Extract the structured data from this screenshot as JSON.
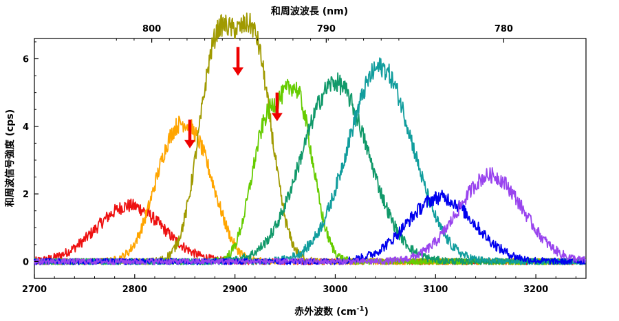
{
  "chart_data": {
    "type": "line",
    "top_axis_title": "和周波波長 (nm)",
    "top_ticks": [
      {
        "label": "800",
        "x": 2817
      },
      {
        "label": "790",
        "x": 2991
      },
      {
        "label": "780",
        "x": 3168
      }
    ],
    "xlabel": "赤外波数 (cm",
    "xlabel_sup": "-1",
    "xlabel_close": ")",
    "ylabel": "和周波信号強度 (cps)",
    "xlim": [
      2700,
      3250
    ],
    "ylim": [
      -0.5,
      6.6
    ],
    "xticks": [
      2700,
      2800,
      2900,
      3000,
      3100,
      3200
    ],
    "yticks": [
      0,
      2,
      4,
      6
    ],
    "grid": false,
    "series": [
      {
        "color": "#ee1111",
        "center": 2795,
        "width": 33,
        "peaks": [
          [
            2795,
            1.65,
            33
          ]
        ]
      },
      {
        "color": "#ffa500",
        "center": 2848,
        "width": 30,
        "peaks": [
          [
            2838,
            3.3,
            20
          ],
          [
            2868,
            2.2,
            18
          ]
        ]
      },
      {
        "color": "#a09a00",
        "center": 2900,
        "width": 30,
        "peaks": [
          [
            2882,
            6.3,
            18
          ],
          [
            2920,
            6.1,
            17
          ]
        ]
      },
      {
        "color": "#66cc00",
        "center": 2945,
        "width": 30,
        "peaks": [
          [
            2930,
            3.6,
            15
          ],
          [
            2962,
            4.7,
            16
          ]
        ]
      },
      {
        "color": "#11996a",
        "center": 3000,
        "width": 34,
        "peaks": [
          [
            3000,
            5.3,
            33
          ]
        ]
      },
      {
        "color": "#119d9d",
        "center": 3045,
        "width": 32,
        "peaks": [
          [
            3045,
            5.75,
            32
          ]
        ]
      },
      {
        "color": "#0000ee",
        "center": 3105,
        "width": 33,
        "peaks": [
          [
            3105,
            1.9,
            33
          ]
        ]
      },
      {
        "color": "#9944ee",
        "center": 3155,
        "width": 32,
        "peaks": [
          [
            3155,
            2.55,
            32
          ]
        ]
      }
    ],
    "annotations": [
      {
        "type": "arrow",
        "color": "#ee0000",
        "x": 2855,
        "y_top": 4.2,
        "y_bottom": 3.35
      },
      {
        "type": "arrow",
        "color": "#ee0000",
        "x": 2903,
        "y_top": 6.35,
        "y_bottom": 5.5
      },
      {
        "type": "arrow",
        "color": "#ee0000",
        "x": 2942,
        "y_top": 5.0,
        "y_bottom": 4.15
      }
    ]
  }
}
